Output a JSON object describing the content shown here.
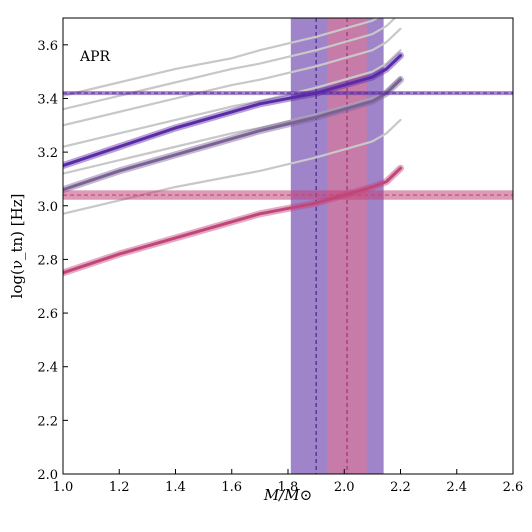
{
  "chart_data": {
    "type": "line",
    "annotation": "APR",
    "xlabel": "M/M⊙",
    "ylabel": "log(ν_tn) [Hz]",
    "xlim": [
      1.0,
      2.6
    ],
    "ylim": [
      2.0,
      3.7
    ],
    "xticks": [
      "1.0",
      "1.2",
      "1.4",
      "1.6",
      "1.8",
      "2.0",
      "2.2",
      "2.4",
      "2.6"
    ],
    "yticks": [
      "2.0",
      "2.2",
      "2.4",
      "2.6",
      "2.8",
      "3.0",
      "3.2",
      "3.4",
      "3.6"
    ],
    "grid": false,
    "colors": {
      "gray": "#c8c8c8",
      "purple": "#5b2aa6",
      "purple_muted": "#7a6296",
      "purple_band": "#7b55b5",
      "pink": "#c2457a",
      "pink_band": "#d8789a"
    },
    "x": [
      1.0,
      1.2,
      1.4,
      1.6,
      1.7,
      1.9,
      2.0,
      2.1,
      2.15,
      2.2
    ],
    "series": [
      {
        "style": "gray",
        "values": [
          3.41,
          3.46,
          3.51,
          3.55,
          3.58,
          3.63,
          3.66,
          3.69,
          3.72,
          3.76
        ]
      },
      {
        "style": "gray",
        "values": [
          3.36,
          3.41,
          3.46,
          3.51,
          3.53,
          3.58,
          3.61,
          3.64,
          3.67,
          3.72
        ]
      },
      {
        "style": "gray",
        "values": [
          3.3,
          3.35,
          3.4,
          3.45,
          3.47,
          3.52,
          3.55,
          3.58,
          3.61,
          3.66
        ]
      },
      {
        "style": "gray",
        "values": [
          3.22,
          3.27,
          3.32,
          3.37,
          3.39,
          3.44,
          3.47,
          3.5,
          3.53,
          3.58
        ]
      },
      {
        "style": "gray",
        "values": [
          3.12,
          3.17,
          3.22,
          3.27,
          3.29,
          3.34,
          3.37,
          3.4,
          3.43,
          3.48
        ]
      },
      {
        "style": "gray",
        "values": [
          2.97,
          3.02,
          3.07,
          3.11,
          3.13,
          3.18,
          3.21,
          3.24,
          3.27,
          3.32
        ]
      },
      {
        "style": "purple",
        "values": [
          3.15,
          3.22,
          3.29,
          3.35,
          3.38,
          3.42,
          3.45,
          3.48,
          3.51,
          3.56
        ]
      },
      {
        "style": "purple_muted",
        "values": [
          3.06,
          3.13,
          3.19,
          3.25,
          3.28,
          3.33,
          3.36,
          3.39,
          3.42,
          3.47
        ]
      },
      {
        "style": "pink",
        "values": [
          2.75,
          2.82,
          2.88,
          2.94,
          2.97,
          3.01,
          3.04,
          3.07,
          3.09,
          3.14
        ]
      }
    ],
    "horizontal_bands": [
      {
        "style": "purple",
        "y": 3.42,
        "low": 3.414,
        "high": 3.426
      },
      {
        "style": "pink",
        "y": 3.04,
        "low": 3.025,
        "high": 3.06
      }
    ],
    "vertical_bands": [
      {
        "style": "purple_band",
        "x": 1.9,
        "low": 1.81,
        "high": 2.14
      },
      {
        "style": "pink_band",
        "x": 2.01,
        "low": 1.94,
        "high": 2.08
      }
    ]
  }
}
